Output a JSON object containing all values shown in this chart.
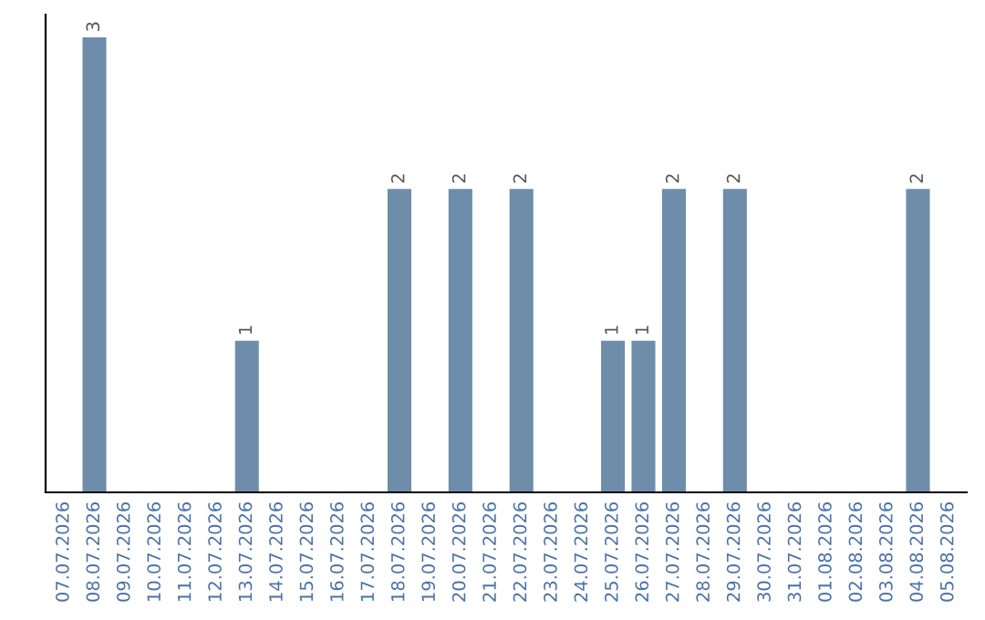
{
  "chart_data": {
    "type": "bar",
    "categories": [
      "07.07.2026",
      "08.07.2026",
      "09.07.2026",
      "10.07.2026",
      "11.07.2026",
      "12.07.2026",
      "13.07.2026",
      "14.07.2026",
      "15.07.2026",
      "16.07.2026",
      "17.07.2026",
      "18.07.2026",
      "19.07.2026",
      "20.07.2026",
      "21.07.2026",
      "22.07.2026",
      "23.07.2026",
      "24.07.2026",
      "25.07.2026",
      "26.07.2026",
      "27.07.2026",
      "28.07.2026",
      "29.07.2026",
      "30.07.2026",
      "31.07.2026",
      "01.08.2026",
      "02.08.2026",
      "03.08.2026",
      "04.08.2026",
      "05.08.2026"
    ],
    "values": [
      0,
      3,
      0,
      0,
      0,
      0,
      1,
      0,
      0,
      0,
      0,
      2,
      0,
      2,
      0,
      2,
      0,
      0,
      1,
      1,
      2,
      0,
      2,
      0,
      0,
      0,
      0,
      0,
      2,
      0
    ],
    "value_labels": [
      null,
      "3",
      null,
      null,
      null,
      null,
      "1",
      null,
      null,
      null,
      null,
      "2",
      null,
      "2",
      null,
      "2",
      null,
      null,
      "1",
      "1",
      "2",
      null,
      "2",
      null,
      null,
      null,
      null,
      null,
      "2",
      null
    ],
    "color": "#6d8dab",
    "ylim": [
      0,
      3.15
    ],
    "tick_labels": "x",
    "grid": false,
    "legend": false
  }
}
